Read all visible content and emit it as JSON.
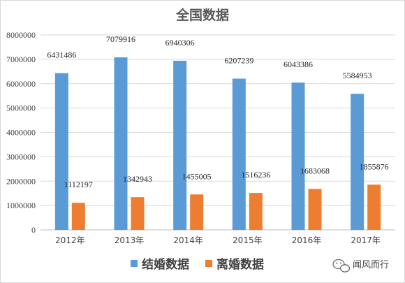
{
  "chart_data": {
    "type": "bar",
    "title": "全国数据",
    "categories": [
      "2012年",
      "2013年",
      "2014年",
      "2015年",
      "2016年",
      "2017年"
    ],
    "series": [
      {
        "name": "结婚数据",
        "color": "#5b9bd5",
        "values": [
          6431486,
          7079916,
          6940306,
          6207239,
          6043386,
          5584953
        ]
      },
      {
        "name": "离婚数据",
        "color": "#ed7d31",
        "values": [
          1112197,
          1342943,
          1455005,
          1516236,
          1683068,
          1855876
        ]
      }
    ],
    "ylim": [
      0,
      8000000
    ],
    "yticks": [
      0,
      1000000,
      2000000,
      3000000,
      4000000,
      5000000,
      6000000,
      7000000,
      8000000
    ],
    "grid": true,
    "legend_position": "bottom"
  },
  "watermark": {
    "text": "闻风而行",
    "icon": "wechat-icon"
  }
}
